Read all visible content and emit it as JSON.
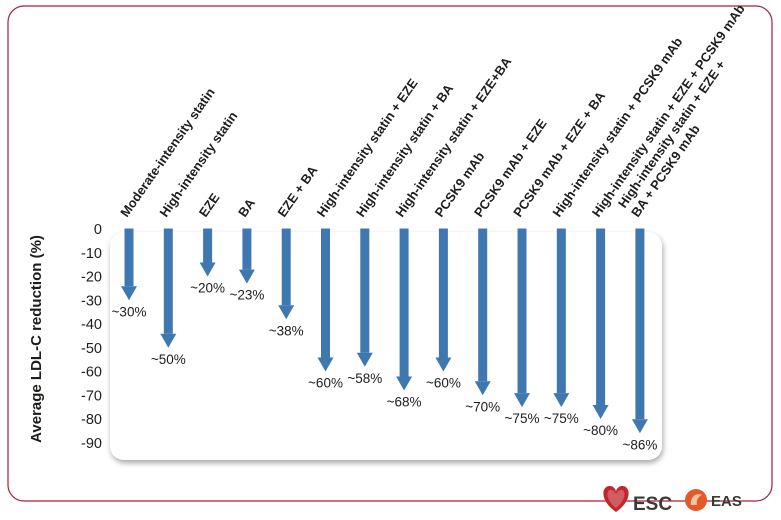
{
  "chart_data": {
    "type": "bar",
    "orientation": "downward-arrows",
    "ylabel": "Average LDL-C reduction (%)",
    "ylim": [
      -90,
      0
    ],
    "yticks": [
      0,
      -10,
      -20,
      -30,
      -40,
      -50,
      -60,
      -70,
      -80,
      -90
    ],
    "ytick_labels": [
      "0",
      "-10",
      "-20",
      "-30",
      "-40",
      "-50",
      "-60",
      "-70",
      "-80",
      "-90"
    ],
    "grid": false,
    "legend": "none",
    "categories": [
      [
        "Moderate-intensity statin"
      ],
      [
        "High-intensity statin"
      ],
      [
        "EZE"
      ],
      [
        "BA"
      ],
      [
        "EZE + BA"
      ],
      [
        "High-intensity statin + EZE"
      ],
      [
        "High-intensity statin + BA"
      ],
      [
        "High-intensity statin + EZE+BA"
      ],
      [
        "PCSK9 mAb"
      ],
      [
        "PCSK9 mAb + EZE"
      ],
      [
        "PCSK9 mAb + EZE + BA"
      ],
      [
        "High-intensity statin + PCSK9 mAb"
      ],
      [
        "High-intensity statin + EZE + PCSK9 mAb"
      ],
      [
        "High-intensity statin + EZE +",
        "BA + PCSK9 mAb"
      ]
    ],
    "values": [
      -30,
      -50,
      -20,
      -23,
      -38,
      -60,
      -58,
      -68,
      -60,
      -70,
      -75,
      -75,
      -80,
      -86
    ],
    "value_labels": [
      "~30%",
      "~50%",
      "~20%",
      "~23%",
      "~38%",
      "~60%",
      "~58%",
      "~68%",
      "~60%",
      "~70%",
      "~75%",
      "~75%",
      "~80%",
      "~86%"
    ]
  },
  "colors": {
    "arrow": "#3f78b0",
    "frame": "#a8203a",
    "esc_heart": "#c1272d",
    "eas_accent": "#e35a2a"
  },
  "branding": {
    "esc_text": "ESC",
    "eas_text": "EAS",
    "esc_icon": "heart-icon",
    "eas_icon": "eas-logo-icon"
  }
}
